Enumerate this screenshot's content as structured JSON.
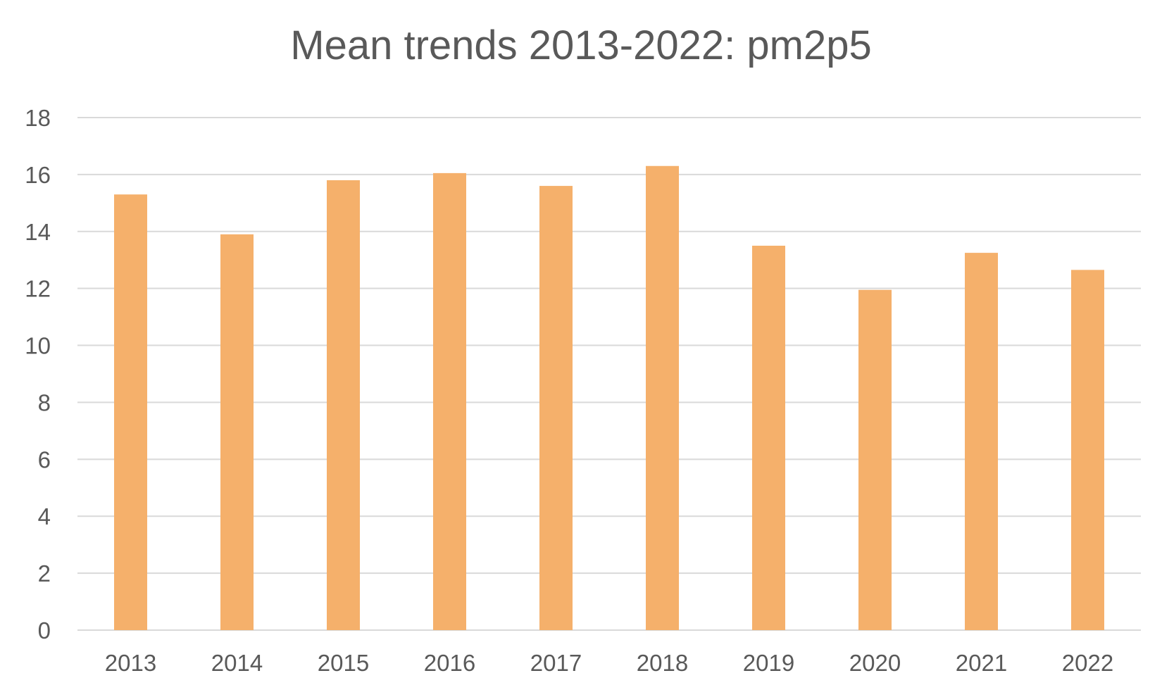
{
  "chart_data": {
    "type": "bar",
    "title": "Mean trends 2013-2022: pm2p5",
    "xlabel": "",
    "ylabel": "",
    "categories": [
      "2013",
      "2014",
      "2015",
      "2016",
      "2017",
      "2018",
      "2019",
      "2020",
      "2021",
      "2022"
    ],
    "values": [
      15.3,
      13.9,
      15.8,
      16.05,
      15.6,
      16.3,
      13.5,
      11.95,
      13.25,
      12.65
    ],
    "ylim": [
      0,
      18
    ],
    "yticks": [
      0,
      2,
      4,
      6,
      8,
      10,
      12,
      14,
      16,
      18
    ],
    "grid": true,
    "legend": "none",
    "bar_color": "#F5B06B"
  }
}
